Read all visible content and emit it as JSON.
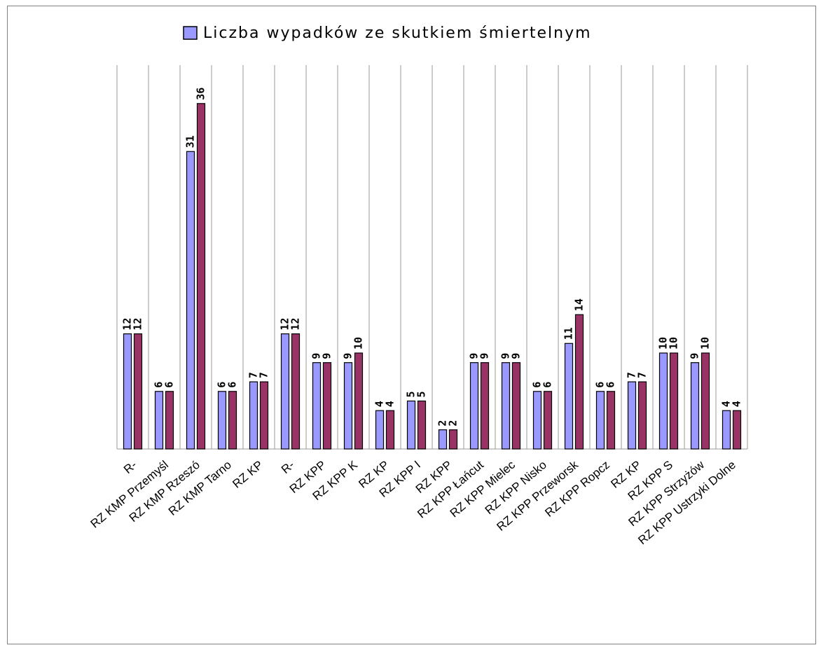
{
  "chart_data": {
    "type": "bar",
    "title": "Liczba wypadków ze skutkiem śmiertelnym",
    "categories": [
      "R-",
      "RZ KMP Przemyśl",
      "RZ KMP Rzeszó",
      "RZ KMP Tarno",
      "RZ KP",
      "R-",
      "RZ KPP",
      "RZ KPP K",
      "RZ KP",
      "RZ KPP I",
      "RZ KPP",
      "RZ KPP Łańcut",
      "RZ KPP Mielec",
      "RZ KPP Nisko",
      "RZ KPP Przeworsk",
      "RZ KPP Ropcz",
      "RZ KP",
      "RZ KPP S",
      "RZ KPP Strzyżów",
      "RZ KPP Ustrzyki Dolne"
    ],
    "series": [
      {
        "name": "Liczba wypadków ze skutkiem śmiertelnym",
        "color": "#9999ff",
        "values": [
          12,
          6,
          31,
          6,
          7,
          12,
          9,
          9,
          4,
          5,
          2,
          9,
          9,
          6,
          11,
          6,
          7,
          10,
          9,
          4
        ]
      },
      {
        "color": "#993366",
        "values": [
          12,
          6,
          36,
          6,
          7,
          12,
          9,
          10,
          4,
          5,
          2,
          9,
          9,
          6,
          14,
          6,
          7,
          10,
          10,
          4
        ]
      }
    ],
    "ylim": [
      0,
      40
    ]
  }
}
